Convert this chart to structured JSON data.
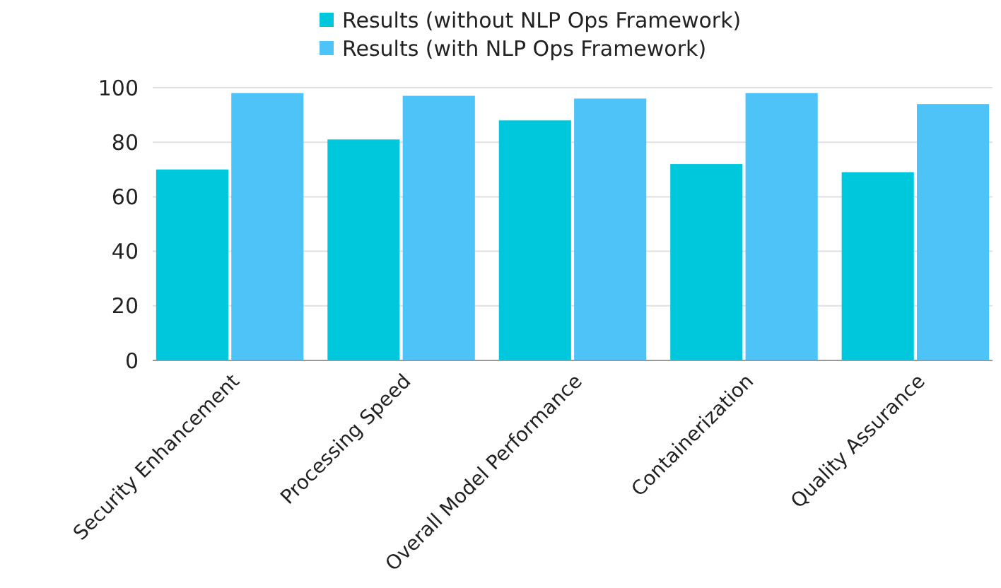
{
  "chart_data": {
    "type": "bar",
    "categories": [
      "Security Enhancement",
      "Processing Speed",
      "Overall Model Performance",
      "Containerization",
      "Quality Assurance"
    ],
    "series": [
      {
        "name": "Results (without NLP Ops Framework)",
        "color": "#00c8dc",
        "values": [
          70,
          81,
          88,
          72,
          69
        ]
      },
      {
        "name": "Results (with NLP Ops Framework)",
        "color": "#4dc3f7",
        "values": [
          98,
          97,
          96,
          98,
          94
        ]
      }
    ],
    "ylim": [
      0,
      100
    ],
    "yticks": [
      0,
      20,
      40,
      60,
      80,
      100
    ],
    "grid": "y",
    "legend": "top"
  }
}
